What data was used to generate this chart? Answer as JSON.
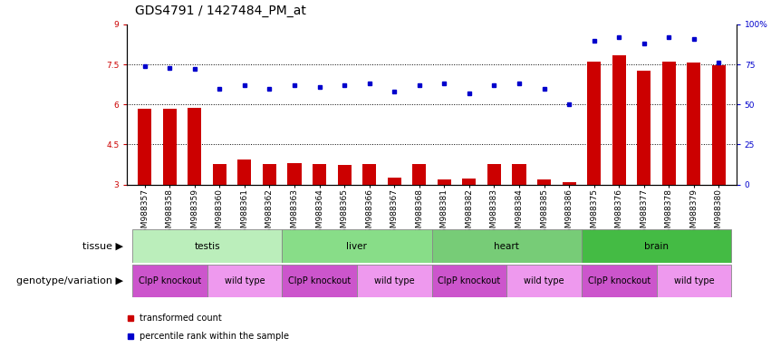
{
  "title": "GDS4791 / 1427484_PM_at",
  "sample_ids": [
    "GSM988357",
    "GSM988358",
    "GSM988359",
    "GSM988360",
    "GSM988361",
    "GSM988362",
    "GSM988363",
    "GSM988364",
    "GSM988365",
    "GSM988366",
    "GSM988367",
    "GSM988368",
    "GSM988381",
    "GSM988382",
    "GSM988383",
    "GSM988384",
    "GSM988385",
    "GSM988386",
    "GSM988375",
    "GSM988376",
    "GSM988377",
    "GSM988378",
    "GSM988379",
    "GSM988380"
  ],
  "bar_values": [
    5.85,
    5.82,
    5.87,
    3.75,
    3.95,
    3.75,
    3.8,
    3.75,
    3.72,
    3.78,
    3.25,
    3.78,
    3.2,
    3.22,
    3.75,
    3.75,
    3.2,
    3.1,
    7.6,
    7.85,
    7.25,
    7.62,
    7.58,
    7.48
  ],
  "dot_values": [
    74,
    73,
    72,
    60,
    62,
    60,
    62,
    61,
    62,
    63,
    58,
    62,
    63,
    57,
    62,
    63,
    60,
    50,
    90,
    92,
    88,
    92,
    91,
    76
  ],
  "ylim_left": [
    3,
    9
  ],
  "ylim_right": [
    0,
    100
  ],
  "yticks_left": [
    3,
    4.5,
    6,
    7.5,
    9
  ],
  "yticks_right": [
    0,
    25,
    50,
    75,
    100
  ],
  "hlines": [
    4.5,
    6.0,
    7.5
  ],
  "bar_color": "#cc0000",
  "dot_color": "#0000cc",
  "bar_bottom": 3,
  "tissue_data": [
    {
      "label": "testis",
      "start": 0,
      "end": 5,
      "color": "#bbeebb"
    },
    {
      "label": "liver",
      "start": 6,
      "end": 11,
      "color": "#88dd88"
    },
    {
      "label": "heart",
      "start": 12,
      "end": 17,
      "color": "#77cc77"
    },
    {
      "label": "brain",
      "start": 18,
      "end": 23,
      "color": "#44bb44"
    }
  ],
  "genotype_data": [
    {
      "label": "ClpP knockout",
      "start": 0,
      "end": 2,
      "color": "#cc55cc"
    },
    {
      "label": "wild type",
      "start": 3,
      "end": 5,
      "color": "#ee99ee"
    },
    {
      "label": "ClpP knockout",
      "start": 6,
      "end": 8,
      "color": "#cc55cc"
    },
    {
      "label": "wild type",
      "start": 9,
      "end": 11,
      "color": "#ee99ee"
    },
    {
      "label": "ClpP knockout",
      "start": 12,
      "end": 14,
      "color": "#cc55cc"
    },
    {
      "label": "wild type",
      "start": 15,
      "end": 17,
      "color": "#ee99ee"
    },
    {
      "label": "ClpP knockout",
      "start": 18,
      "end": 20,
      "color": "#cc55cc"
    },
    {
      "label": "wild type",
      "start": 21,
      "end": 23,
      "color": "#ee99ee"
    }
  ],
  "legend_bar": "transformed count",
  "legend_dot": "percentile rank within the sample",
  "bg_color": "#ffffff",
  "title_fontsize": 10,
  "tick_fontsize": 6.5,
  "label_fontsize": 8,
  "row_label_fontsize": 8,
  "annotation_fontsize": 7.5
}
